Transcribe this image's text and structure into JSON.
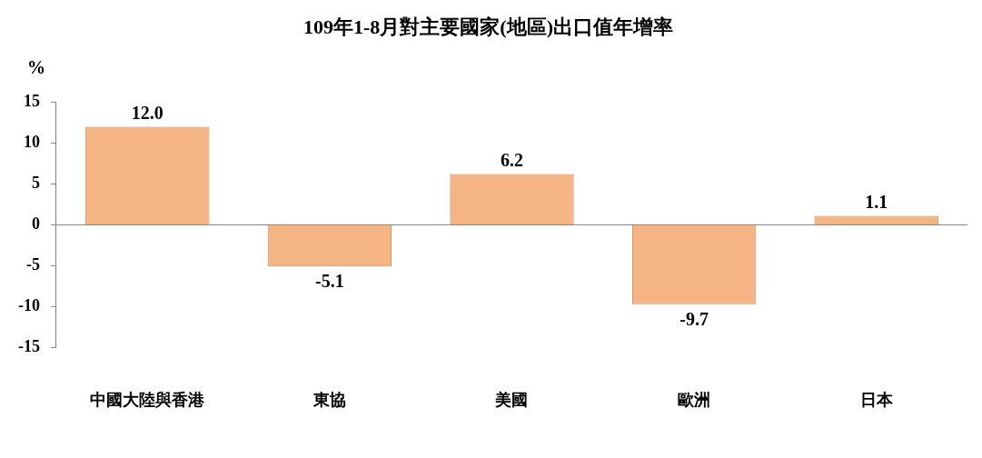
{
  "chart_data": {
    "type": "bar",
    "title": "109年1-8月對主要國家(地區)出口值年增率",
    "ylabel": "%",
    "categories": [
      "中國大陸與香港",
      "東協",
      "美國",
      "歐洲",
      "日本"
    ],
    "values": [
      12.0,
      -5.1,
      6.2,
      -9.7,
      1.1
    ],
    "color": "#f4b483",
    "ylim": [
      -15,
      15
    ],
    "yticks": [
      -15,
      -10,
      -5,
      0,
      5,
      10,
      15
    ],
    "value_labels": [
      "12.0",
      "-5.1",
      "6.2",
      "-9.7",
      "1.1"
    ],
    "legend": false
  }
}
